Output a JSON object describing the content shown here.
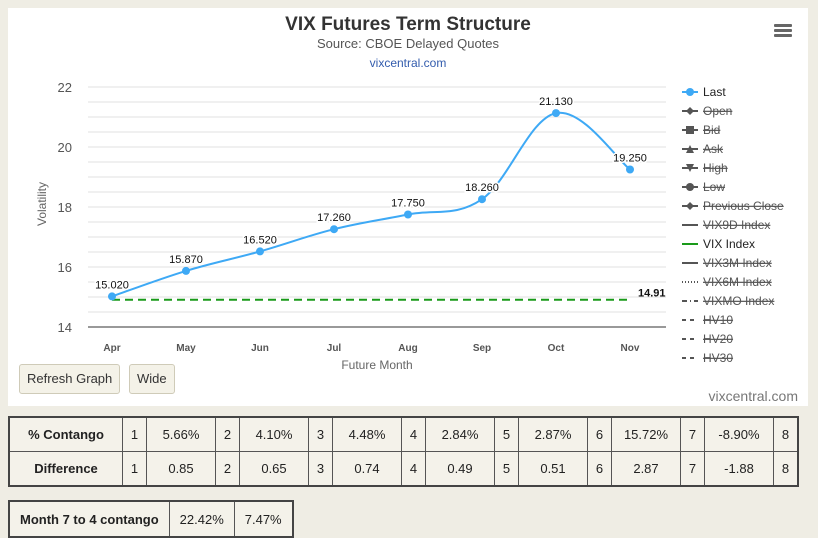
{
  "header": {
    "title": "VIX Futures Term Structure",
    "subtitle": "Source: CBOE Delayed Quotes",
    "link": "vixcentral.com"
  },
  "icons": {
    "menu": "hamburger-menu-icon"
  },
  "colors": {
    "last": "#3ea9f5",
    "vix": "#1a9a1a",
    "grid": "#e2e2e2",
    "axis": "#555555"
  },
  "chart_data": {
    "type": "line",
    "title": "VIX Futures Term Structure",
    "subtitle": "Source: CBOE Delayed Quotes",
    "xlabel": "Future Month",
    "ylabel": "Volatility",
    "ylim": [
      14,
      22
    ],
    "yticks": [
      14,
      16,
      18,
      20,
      22
    ],
    "grid": true,
    "legend_position": "right",
    "categories": [
      "Apr",
      "May",
      "Jun",
      "Jul",
      "Aug",
      "Sep",
      "Oct",
      "Nov"
    ],
    "series": [
      {
        "name": "Last",
        "values": [
          15.02,
          15.87,
          16.52,
          17.26,
          17.75,
          18.26,
          21.13,
          19.25
        ],
        "labels": [
          "15.020",
          "15.870",
          "16.520",
          "17.260",
          "17.750",
          "18.260",
          "21.130",
          "19.250"
        ]
      },
      {
        "name": "VIX Index",
        "value": 14.91,
        "label": "14.91",
        "style": "dashed"
      }
    ],
    "legend": [
      {
        "name": "Last",
        "symbol": "circle",
        "active": true
      },
      {
        "name": "Open",
        "symbol": "diamond",
        "active": false
      },
      {
        "name": "Bid",
        "symbol": "square",
        "active": false
      },
      {
        "name": "Ask",
        "symbol": "triangle",
        "active": false
      },
      {
        "name": "High",
        "symbol": "triangle-down",
        "active": false
      },
      {
        "name": "Low",
        "symbol": "circle",
        "active": false
      },
      {
        "name": "Previous Close",
        "symbol": "diamond",
        "active": false
      },
      {
        "name": "VIX9D Index",
        "symbol": "line",
        "active": false
      },
      {
        "name": "VIX Index",
        "symbol": "line",
        "active": true
      },
      {
        "name": "VIX3M Index",
        "symbol": "line",
        "active": false
      },
      {
        "name": "VIX6M Index",
        "symbol": "dot",
        "active": false
      },
      {
        "name": "VIXMO Index",
        "symbol": "dashdot",
        "active": false
      },
      {
        "name": "HV10",
        "symbol": "dash",
        "active": false
      },
      {
        "name": "HV20",
        "symbol": "dash",
        "active": false
      },
      {
        "name": "HV30",
        "symbol": "dash",
        "active": false
      }
    ]
  },
  "buttons": {
    "refresh": "Refresh Graph",
    "wide": "Wide"
  },
  "credit": "vixcentral.com",
  "contango_table": {
    "rows": [
      {
        "label": "% Contango",
        "cells": [
          [
            "1",
            "5.66%"
          ],
          [
            "2",
            "4.10%"
          ],
          [
            "3",
            "4.48%"
          ],
          [
            "4",
            "2.84%"
          ],
          [
            "5",
            "2.87%"
          ],
          [
            "6",
            "15.72%"
          ],
          [
            "7",
            "-8.90%"
          ],
          [
            "8",
            ""
          ]
        ]
      },
      {
        "label": "Difference",
        "cells": [
          [
            "1",
            "0.85"
          ],
          [
            "2",
            "0.65"
          ],
          [
            "3",
            "0.74"
          ],
          [
            "4",
            "0.49"
          ],
          [
            "5",
            "0.51"
          ],
          [
            "6",
            "2.87"
          ],
          [
            "7",
            "-1.88"
          ],
          [
            "8",
            ""
          ]
        ]
      }
    ]
  },
  "month74": {
    "label": "Month 7 to 4 contango",
    "v1": "22.42%",
    "v2": "7.47%"
  }
}
